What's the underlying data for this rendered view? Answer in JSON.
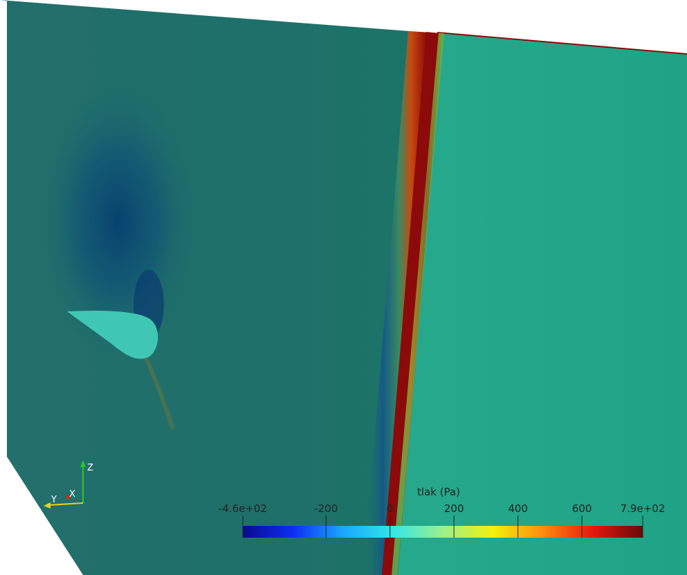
{
  "colorbar": {
    "title": "tlak (Pa)",
    "min_label": "-4.6e+02",
    "max_label": "7.9e+02",
    "min": -460,
    "max": 790,
    "ticks": [
      {
        "value": -460,
        "label": "-4.6e+02"
      },
      {
        "value": -200,
        "label": "-200"
      },
      {
        "value": 0,
        "label": "0"
      },
      {
        "value": 200,
        "label": "200"
      },
      {
        "value": 400,
        "label": "400"
      },
      {
        "value": 600,
        "label": "600"
      },
      {
        "value": 790,
        "label": "7.9e+02"
      }
    ],
    "colors": [
      "#0a0a8c",
      "#0d2ef0",
      "#1aa6ff",
      "#33e6e6",
      "#9bf08c",
      "#f2f20d",
      "#ff8c0d",
      "#e6170d",
      "#660a0a"
    ]
  },
  "axes": {
    "y_label": "Y",
    "x_label": "X",
    "z_label": "Z"
  },
  "field_colors": {
    "background": "#ffffff",
    "left_region": "#1f7569",
    "right_region": "#21a38a",
    "airfoil": "#3fc7b4",
    "shock": "#8c0a0a"
  }
}
